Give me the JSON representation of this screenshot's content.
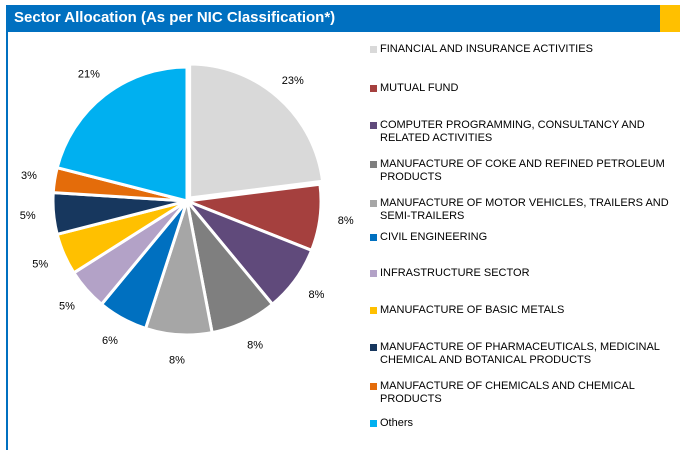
{
  "chart_data": {
    "type": "pie",
    "title": "Sector Allocation (As per NIC Classification*)",
    "categories": [
      "FINANCIAL AND INSURANCE ACTIVITIES",
      "MUTUAL FUND",
      "COMPUTER PROGRAMMING, CONSULTANCY AND RELATED ACTIVITIES",
      "MANUFACTURE OF COKE AND REFINED PETROLEUM PRODUCTS",
      "MANUFACTURE OF MOTOR VEHICLES, TRAILERS AND SEMI-TRAILERS",
      "CIVIL ENGINEERING",
      "INFRASTRUCTURE SECTOR",
      "MANUFACTURE OF BASIC METALS",
      "MANUFACTURE OF PHARMACEUTICALS, MEDICINAL CHEMICAL AND BOTANICAL PRODUCTS",
      "MANUFACTURE OF CHEMICALS AND CHEMICAL PRODUCTS",
      "Others"
    ],
    "values": [
      23,
      8,
      8,
      8,
      8,
      6,
      5,
      5,
      5,
      3,
      21
    ],
    "value_labels": [
      "23%",
      "8%",
      "8%",
      "8%",
      "8%",
      "6%",
      "5%",
      "5%",
      "5%",
      "3%",
      "21%"
    ],
    "colors": [
      "#d9d9d9",
      "#a5403e",
      "#604a7b",
      "#7f7f7f",
      "#a6a6a6",
      "#0070c0",
      "#b3a2c7",
      "#ffc000",
      "#17375e",
      "#e46c0a",
      "#00b0f0"
    ],
    "legend": "right"
  }
}
